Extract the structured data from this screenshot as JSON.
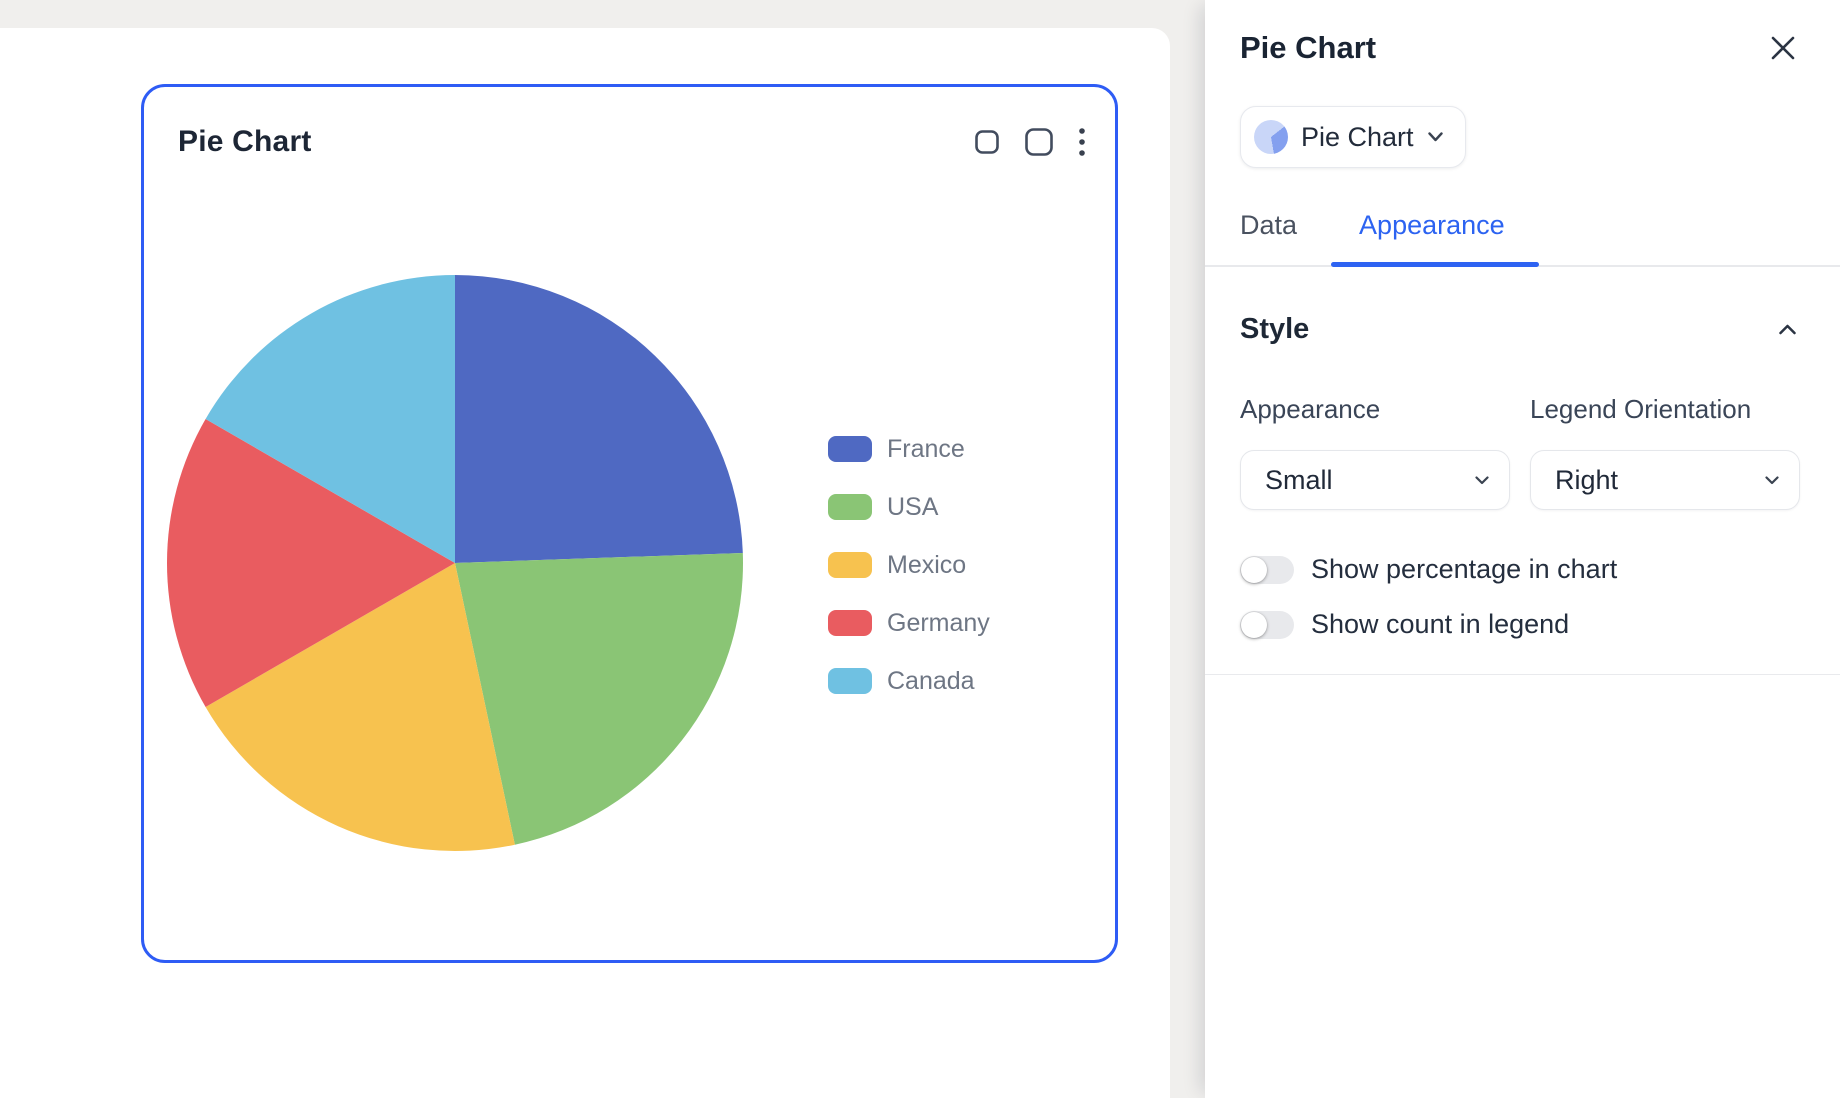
{
  "canvas_card": {
    "title": "Pie Chart",
    "border_color": "#2e5cf5"
  },
  "chart_data": {
    "type": "pie",
    "title": "Pie Chart",
    "categories": [
      "France",
      "USA",
      "Mexico",
      "Germany",
      "Canada"
    ],
    "values": [
      22,
      20,
      18,
      15,
      15
    ],
    "colors": [
      "#4f69c2",
      "#8ac575",
      "#f7c24f",
      "#e95c60",
      "#6fc1e2"
    ],
    "legend_position": "right",
    "start_angle_deg": 0,
    "direction": "clockwise"
  },
  "panel": {
    "title": "Pie Chart",
    "chart_type_selector": {
      "label": "Pie Chart"
    },
    "tabs": {
      "data": "Data",
      "appearance": "Appearance",
      "active": "Appearance"
    },
    "style": {
      "heading": "Style",
      "appearance_label": "Appearance",
      "appearance_value": "Small",
      "legend_orientation_label": "Legend Orientation",
      "legend_orientation_value": "Right",
      "toggle_percentage": {
        "label": "Show percentage in chart",
        "on": false
      },
      "toggle_count": {
        "label": "Show count in legend",
        "on": false
      }
    }
  }
}
